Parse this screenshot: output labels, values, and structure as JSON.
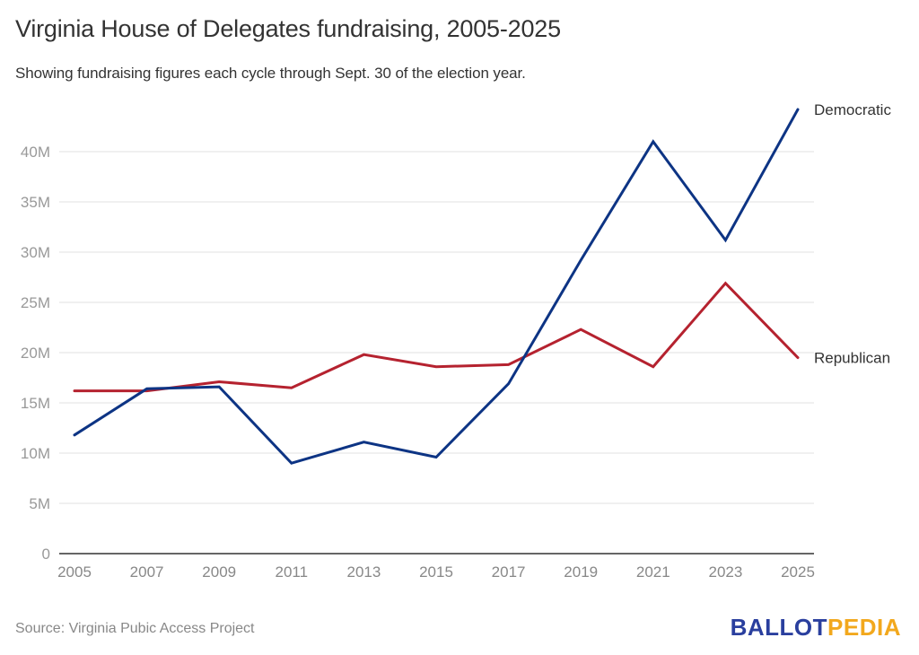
{
  "chart_data": {
    "type": "line",
    "title": "Virginia House of Delegates fundraising, 2005-2025",
    "subtitle": "Showing fundraising figures each cycle through Sept. 30 of the election year.",
    "xlabel": "",
    "ylabel": "",
    "x": [
      "2005",
      "2007",
      "2009",
      "2011",
      "2013",
      "2015",
      "2017",
      "2019",
      "2021",
      "2023",
      "2025"
    ],
    "ylim": [
      0,
      45000000
    ],
    "yticks": [
      0,
      5000000,
      10000000,
      15000000,
      20000000,
      25000000,
      30000000,
      35000000,
      40000000
    ],
    "ytick_labels": [
      "0",
      "5M",
      "10M",
      "15M",
      "20M",
      "25M",
      "30M",
      "35M",
      "40M"
    ],
    "grid": true,
    "legend": "direct labels at line ends (right)",
    "series": [
      {
        "name": "Democratic",
        "color": "#0d3484",
        "values": [
          11800000,
          16400000,
          16600000,
          9000000,
          11100000,
          9600000,
          16900000,
          29200000,
          41000000,
          31200000,
          44200000
        ]
      },
      {
        "name": "Republican",
        "color": "#b5222f",
        "values": [
          16200000,
          16200000,
          17100000,
          16500000,
          19800000,
          18600000,
          18800000,
          22300000,
          18600000,
          26900000,
          19500000
        ]
      }
    ]
  },
  "footer": {
    "source": "Source: Virginia Pubic Access Project",
    "logo_part1": "BALLOT",
    "logo_part2": "PEDIA"
  }
}
